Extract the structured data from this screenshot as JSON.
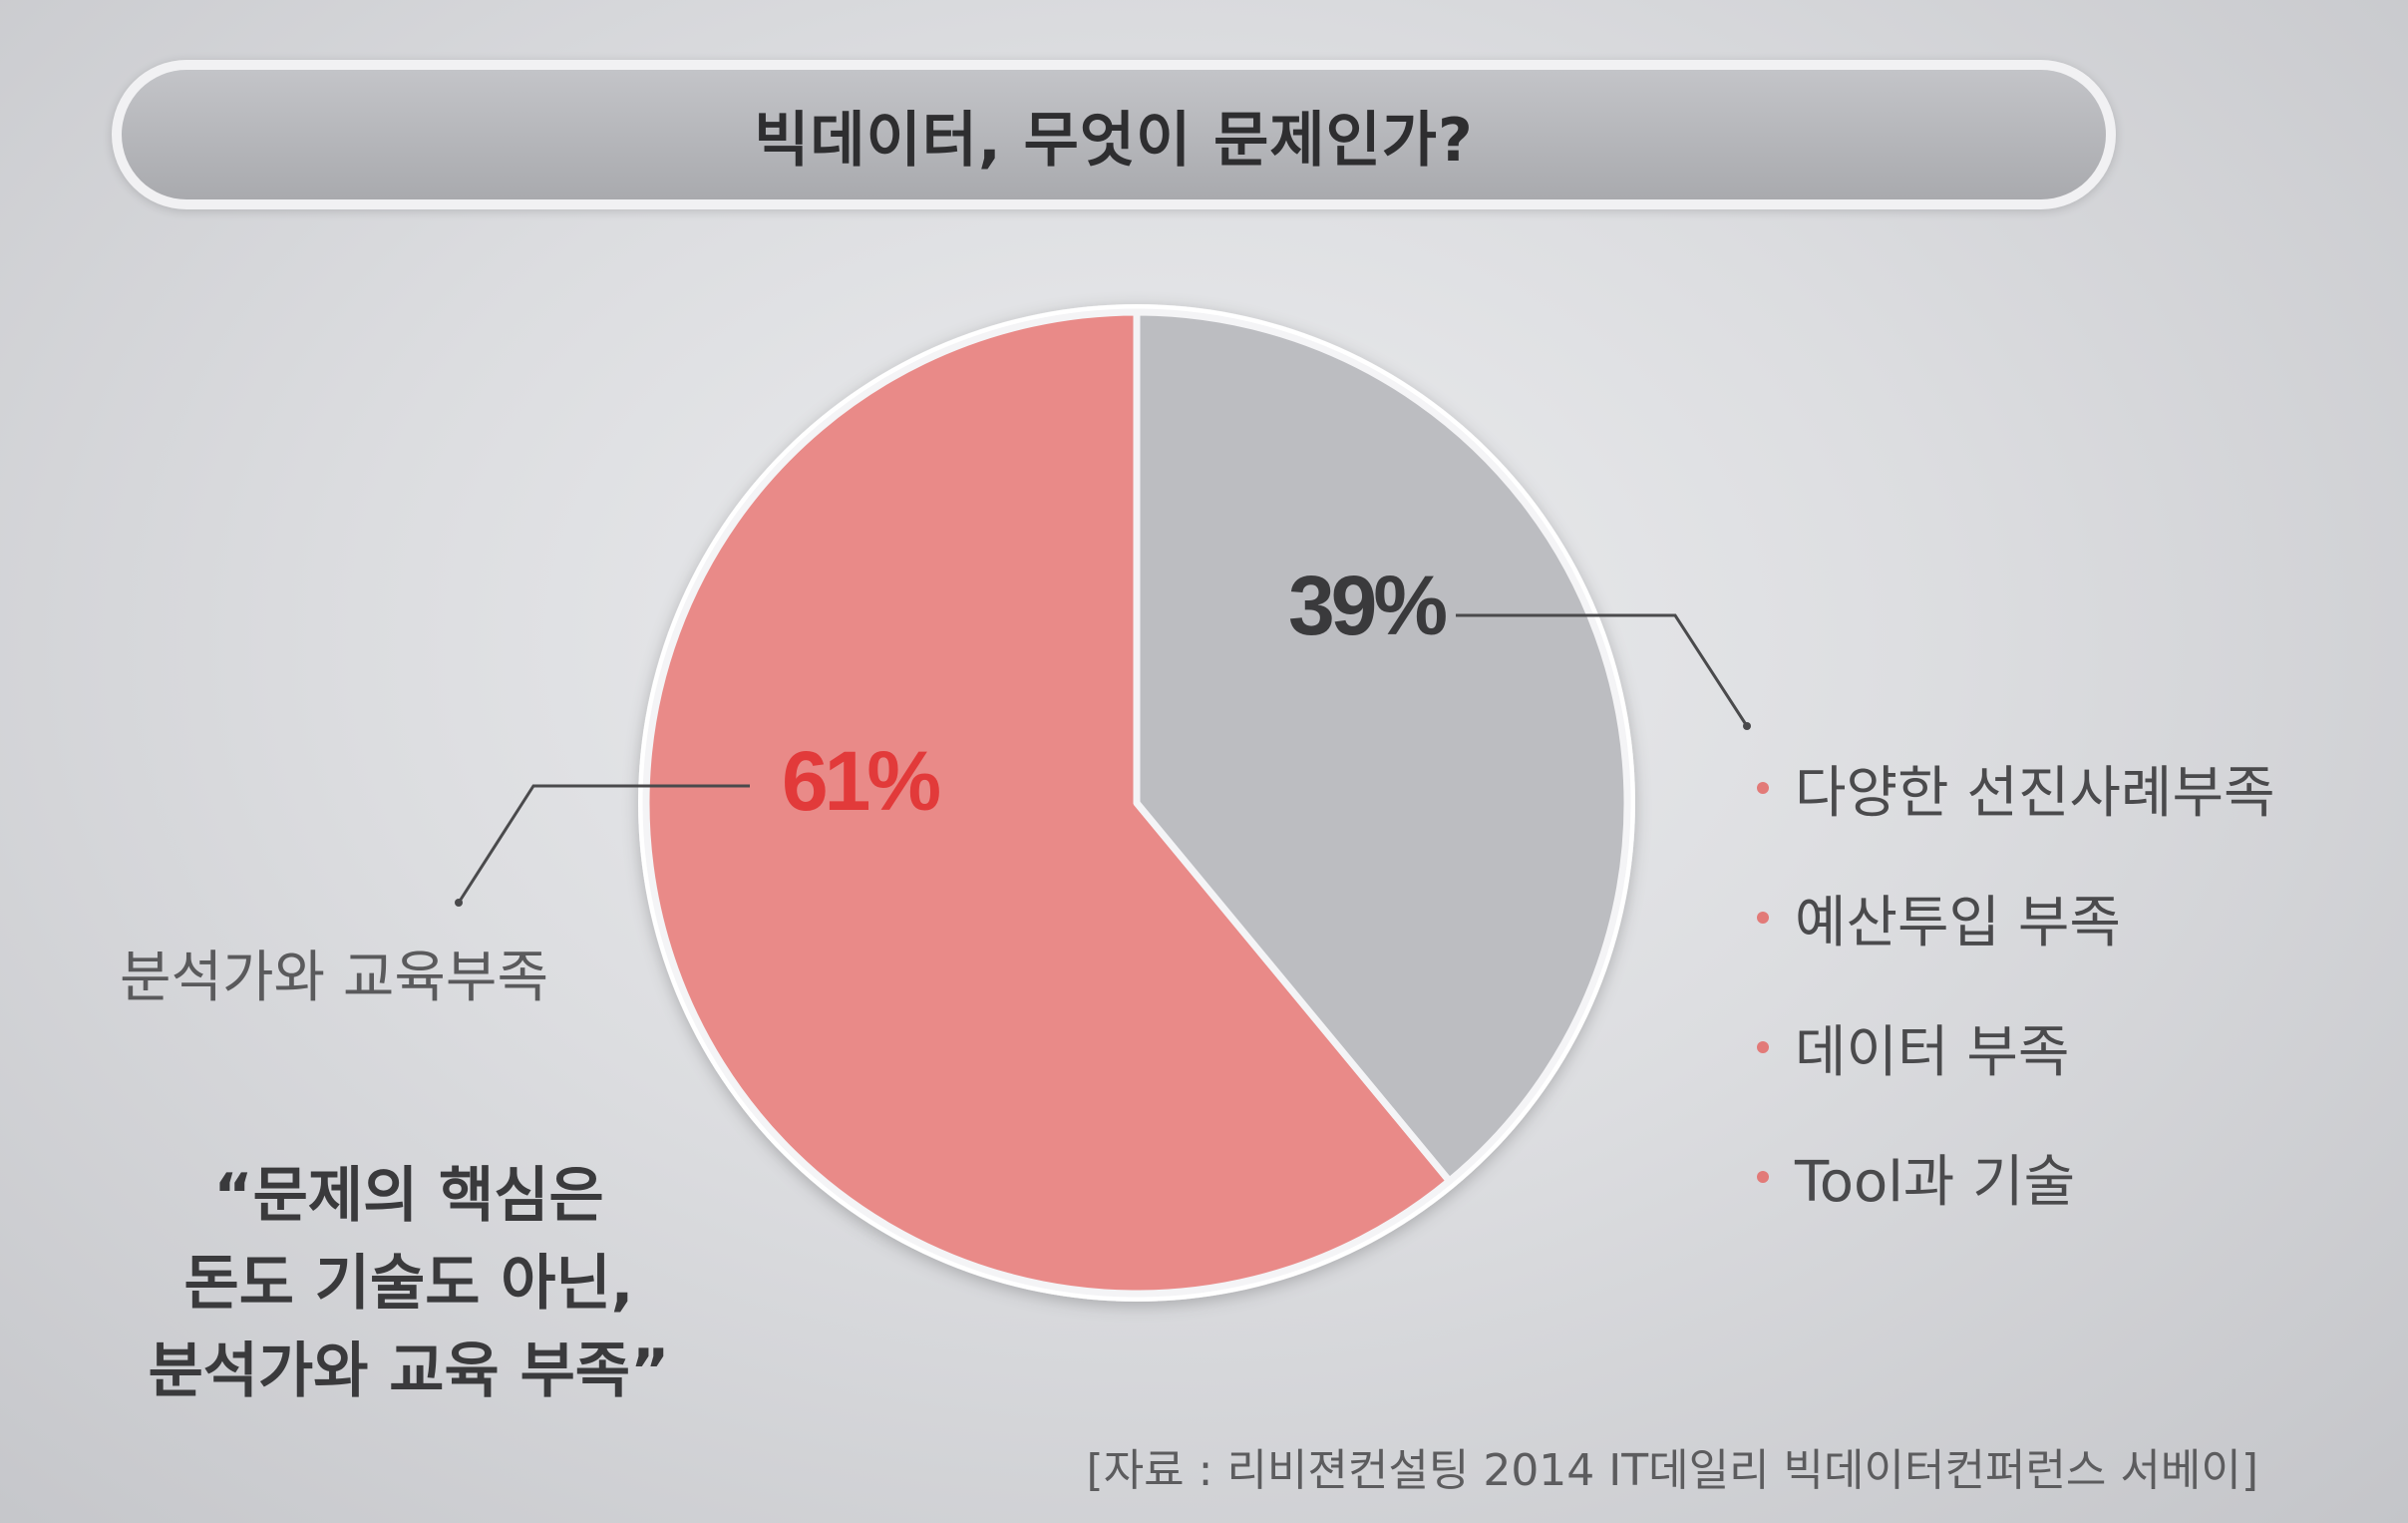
{
  "title": "빅데이터, 무엇이 문제인가?",
  "colors": {
    "slice_main": "#e98a88",
    "slice_other": "#bcbdc1",
    "pct_main": "#e23a3a",
    "pct_other": "#3a3a3c",
    "bullet": "#e27a78"
  },
  "chart_data": {
    "type": "pie",
    "slices": [
      {
        "label": "분석가와 교육부족",
        "value": 61,
        "display": "61%"
      },
      {
        "label": "",
        "value": 39,
        "display": "39%"
      }
    ]
  },
  "left_label": "분석가와 교육부족",
  "legend_items": [
    "다양한 선진사례부족",
    "예산투입 부족",
    "데이터 부족",
    "Tool과 기술"
  ],
  "quote": {
    "line1": "“문제의 핵심은",
    "line2": "돈도 기술도 아닌,",
    "line3": "분석가와 교육 부족”"
  },
  "source": "[자료 : 리비젼컨설팅 2014 IT데일리 빅데이터컨퍼런스 서베이]"
}
